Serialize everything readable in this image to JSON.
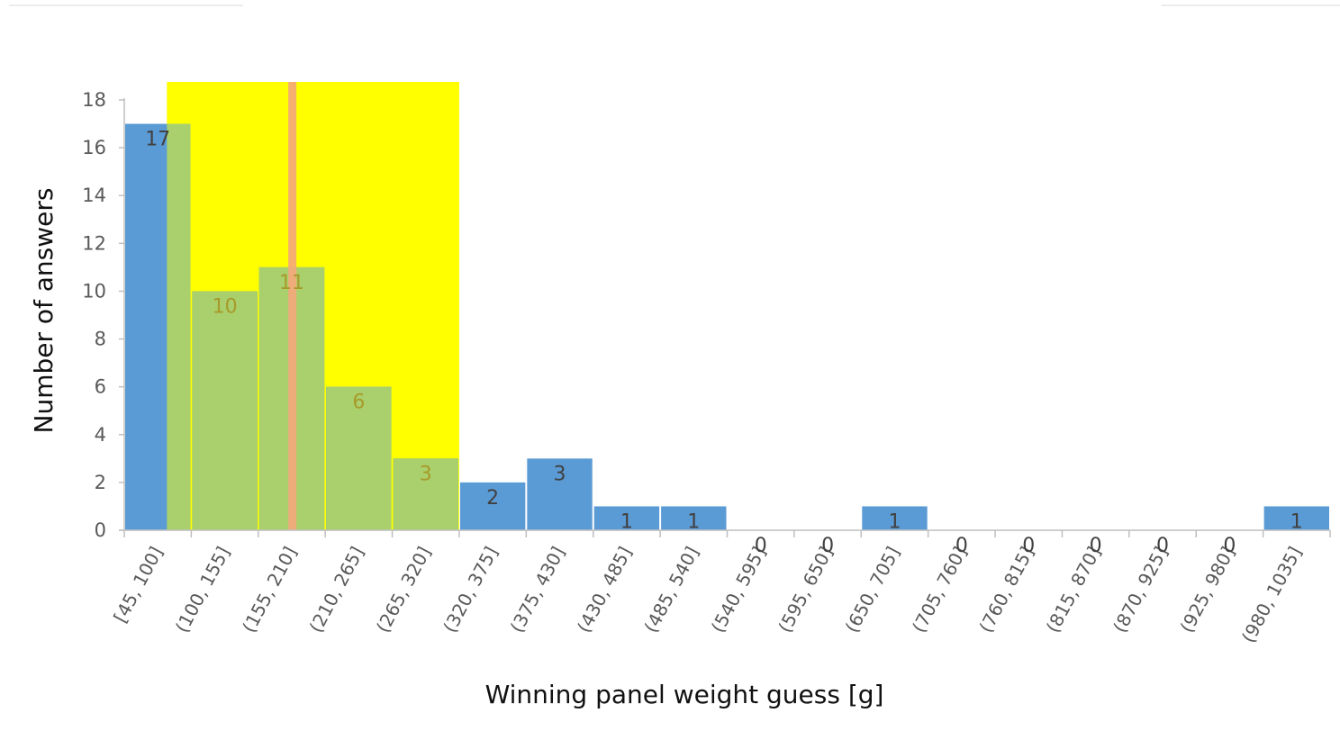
{
  "colors": {
    "bar": "#5b9bd5",
    "highlight_band": "#ffff00",
    "overlap_bar": "#a9d06c",
    "marker_line": "#f4a77c",
    "axis": "#bfbfbf"
  },
  "chart_data": {
    "type": "bar",
    "xlabel": "Winning panel weight guess [g]",
    "ylabel": "Number of answers",
    "ylim": [
      0,
      18
    ],
    "yticks": [
      0,
      2,
      4,
      6,
      8,
      10,
      12,
      14,
      16,
      18
    ],
    "grid": false,
    "categories": [
      "[45, 100]",
      "(100, 155]",
      "(155, 210]",
      "(210, 265]",
      "(265, 320]",
      "(320, 375]",
      "(375, 430]",
      "(430, 485]",
      "(485, 540]",
      "(540, 595]",
      "(595, 650]",
      "(650, 705]",
      "(705, 760]",
      "(760, 815]",
      "(815, 870]",
      "(870, 925]",
      "(925, 980]",
      "(980, 1035]"
    ],
    "values": [
      17,
      10,
      11,
      6,
      3,
      2,
      3,
      1,
      1,
      0,
      0,
      1,
      0,
      0,
      0,
      0,
      0,
      1
    ],
    "highlight_range": [
      80,
      320
    ],
    "marker_line_x": 183
  }
}
